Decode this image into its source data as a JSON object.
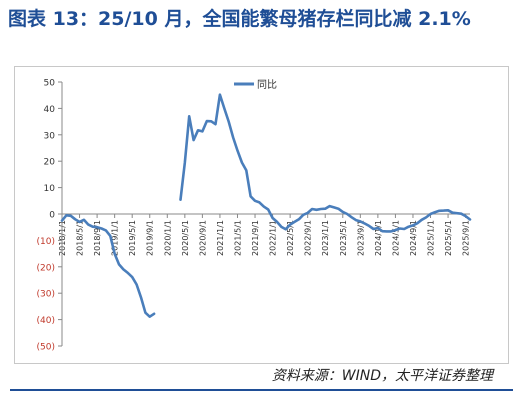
{
  "title": "图表 13：25/10 月，全国能繁母猪存栏同比减 2.1%",
  "source": "资料来源：WIND，太平洋证券整理",
  "colors": {
    "title": "#1f4e96",
    "line": "#4a7ebb",
    "negative_tick": "#c0392b",
    "footer_line": "#1f4e96"
  },
  "chart_data": {
    "type": "line",
    "title": "",
    "xlabel": "",
    "ylabel": "",
    "ylim": [
      -50,
      50
    ],
    "y_ticks": [
      50,
      40,
      30,
      20,
      10,
      0,
      -10,
      -20,
      -30,
      -40,
      -50
    ],
    "y_tick_labels": [
      "50",
      "40",
      "30",
      "20",
      "10",
      "0",
      "(10)",
      "(20)",
      "(30)",
      "(40)",
      "(50)"
    ],
    "x_tick_labels": [
      "2018/1/1",
      "2018/5/1",
      "2018/9/1",
      "2019/1/1",
      "2019/5/1",
      "2019/9/1",
      "2020/1/1",
      "2020/5/1",
      "2020/9/1",
      "2021/1/1",
      "2021/5/1",
      "2021/9/1",
      "2022/1/1",
      "2022/5/1",
      "2022/9/1",
      "2023/1/1",
      "2023/5/1",
      "2023/9/1",
      "2024/1/1",
      "2024/5/1",
      "2024/9/1",
      "2025/1/1",
      "2025/5/1",
      "2025/9/1"
    ],
    "legend_position": "top-center",
    "grid": false,
    "series": [
      {
        "name": "同比",
        "segments": [
          [
            [
              "2018/1",
              -2.5
            ],
            [
              "2018/2",
              -0.5
            ],
            [
              "2018/3",
              -0.7
            ],
            [
              "2018/4",
              -2.0
            ],
            [
              "2018/5",
              -3.0
            ],
            [
              "2018/6",
              -2.2
            ],
            [
              "2018/7",
              -4.0
            ],
            [
              "2018/8",
              -4.8
            ],
            [
              "2018/9",
              -5.0
            ],
            [
              "2018/10",
              -5.5
            ],
            [
              "2018/11",
              -6.2
            ],
            [
              "2018/12",
              -8.3
            ],
            [
              "2019/1",
              -15.0
            ],
            [
              "2019/2",
              -19.1
            ],
            [
              "2019/3",
              -21.0
            ],
            [
              "2019/4",
              -22.3
            ],
            [
              "2019/5",
              -23.9
            ],
            [
              "2019/6",
              -26.7
            ],
            [
              "2019/7",
              -31.6
            ],
            [
              "2019/8",
              -37.4
            ],
            [
              "2019/9",
              -38.9
            ],
            [
              "2019/10",
              -37.8
            ]
          ],
          [
            [
              "2020/4",
              5.4
            ],
            [
              "2020/5",
              19.3
            ],
            [
              "2020/6",
              37.0
            ],
            [
              "2020/7",
              28.0
            ],
            [
              "2020/8",
              31.7
            ],
            [
              "2020/9",
              31.3
            ],
            [
              "2020/10",
              35.2
            ],
            [
              "2020/11",
              35.1
            ],
            [
              "2020/12",
              34.0
            ],
            [
              "2021/1",
              45.2
            ],
            [
              "2021/2",
              40.0
            ],
            [
              "2021/3",
              35.0
            ],
            [
              "2021/4",
              29.0
            ],
            [
              "2021/5",
              24.0
            ],
            [
              "2021/6",
              19.5
            ],
            [
              "2021/7",
              16.5
            ],
            [
              "2021/8",
              6.7
            ],
            [
              "2021/9",
              5.0
            ],
            [
              "2021/10",
              4.4
            ],
            [
              "2021/11",
              2.8
            ],
            [
              "2021/12",
              1.7
            ],
            [
              "2022/1",
              -1.5
            ],
            [
              "2022/2",
              -3.0
            ],
            [
              "2022/3",
              -4.9
            ],
            [
              "2022/4",
              -5.8
            ],
            [
              "2022/5",
              -4.0
            ],
            [
              "2022/6",
              -3.0
            ],
            [
              "2022/7",
              -2.0
            ],
            [
              "2022/8",
              -0.3
            ],
            [
              "2022/9",
              0.4
            ],
            [
              "2022/10",
              1.9
            ],
            [
              "2022/11",
              1.6
            ],
            [
              "2022/12",
              1.9
            ],
            [
              "2023/1",
              2.0
            ],
            [
              "2023/2",
              3.0
            ],
            [
              "2023/3",
              2.5
            ],
            [
              "2023/4",
              2.0
            ],
            [
              "2023/5",
              0.8
            ],
            [
              "2023/6",
              0.0
            ],
            [
              "2023/7",
              -1.2
            ],
            [
              "2023/8",
              -2.3
            ],
            [
              "2023/9",
              -2.8
            ],
            [
              "2023/10",
              -3.6
            ],
            [
              "2023/11",
              -4.5
            ],
            [
              "2023/12",
              -5.7
            ],
            [
              "2024/1",
              -5.3
            ],
            [
              "2024/2",
              -6.5
            ],
            [
              "2024/3",
              -6.6
            ],
            [
              "2024/4",
              -6.6
            ],
            [
              "2024/5",
              -6.1
            ],
            [
              "2024/6",
              -5.5
            ],
            [
              "2024/7",
              -5.7
            ],
            [
              "2024/8",
              -4.8
            ],
            [
              "2024/9",
              -4.3
            ],
            [
              "2024/10",
              -3.5
            ],
            [
              "2024/11",
              -2.2
            ],
            [
              "2024/12",
              -1.3
            ],
            [
              "2025/1",
              0.0
            ],
            [
              "2025/2",
              0.7
            ],
            [
              "2025/3",
              1.2
            ],
            [
              "2025/4",
              1.3
            ],
            [
              "2025/5",
              1.4
            ],
            [
              "2025/6",
              0.5
            ],
            [
              "2025/7",
              0.3
            ],
            [
              "2025/8",
              0.1
            ],
            [
              "2025/9",
              -0.8
            ],
            [
              "2025/10",
              -2.1
            ]
          ]
        ]
      }
    ]
  }
}
